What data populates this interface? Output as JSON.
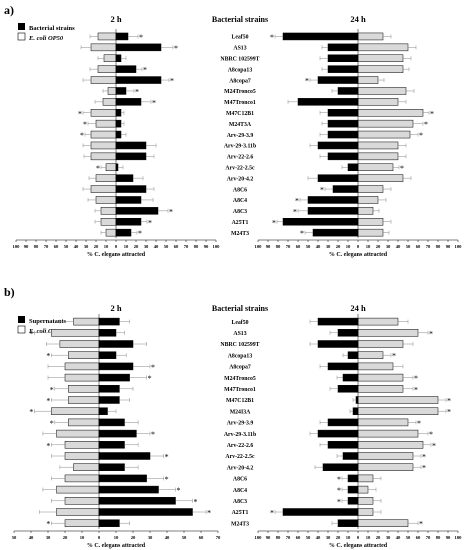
{
  "colors": {
    "bacteria": "#000000",
    "control": "#d9d9d9",
    "stroke": "#000000",
    "errorbar": "#888888"
  },
  "panels": [
    {
      "label": "a)",
      "legend_bacteria": "Bacterial strains",
      "legend_control": "E. coli OP50",
      "center_title": "Bacterial strains",
      "strains": [
        "Leaf50",
        "AS13",
        "NBRC 102599T",
        "A8copa13",
        "A8copa7",
        "M24Tronco5",
        "M47Tronco1",
        "M47C12B1",
        "M24T3A",
        "Arv-29-3.9",
        "Arv-29-3.11b",
        "Arv-22-2.6",
        "Arv-22-2.5c",
        "Arv-20-4.2",
        "A8C6",
        "A8C4",
        "A8C3",
        "A25T1",
        "M24T3"
      ]
    },
    {
      "label": "b)",
      "legend_bacteria": "Supernatants",
      "legend_control": "E. coli OP50",
      "center_title": "Bacterial strains",
      "strains": [
        "Leaf50",
        "AS13",
        "NBRC 102599T",
        "A8copa13",
        "A8copa7",
        "M24Tronco5",
        "M47Tronco1",
        "M47C12B1",
        "M24I3A",
        "Arv-29-3.9",
        "Arv-29-3.11b",
        "Arv-22-2.6",
        "Arv-22-2.5c",
        "Arv-20-4.2",
        "A8C6",
        "A8C4",
        "A8C3",
        "A25T1",
        "M24T3"
      ]
    }
  ],
  "chart_data": [
    {
      "type": "bar",
      "panel": "a",
      "title": "2 h",
      "xlabel": "% C. elegans attracted",
      "xlim": [
        -100,
        100
      ],
      "xticks": [
        "100",
        "90",
        "80",
        "70",
        "60",
        "50",
        "40",
        "30",
        "20",
        "10",
        "0",
        "10",
        "20",
        "30",
        "40",
        "50",
        "60",
        "70",
        "80",
        "90",
        "100"
      ],
      "categories": [
        "Leaf50",
        "AS13",
        "NBRC 102599T",
        "A8copa13",
        "A8copa7",
        "M24Tronco5",
        "M47Tronco1",
        "M47C12B1",
        "M24T3A",
        "Arv-29-3.9",
        "Arv-29-3.11b",
        "Arv-22-2.6",
        "Arv-22-2.5c",
        "Arv-20-4.2",
        "A8C6",
        "A8C4",
        "A8C3",
        "A25T1",
        "M24T3"
      ],
      "series": [
        {
          "name": "E. coli OP50",
          "values": [
            -18,
            -25,
            -12,
            -18,
            -25,
            -8,
            -13,
            -25,
            -20,
            -25,
            -25,
            -25,
            -10,
            -20,
            -25,
            -20,
            -15,
            -15,
            -10
          ],
          "err": [
            8,
            10,
            6,
            8,
            8,
            5,
            8,
            8,
            8,
            6,
            8,
            7,
            5,
            7,
            8,
            8,
            6,
            6,
            5
          ]
        },
        {
          "name": "Bacterial strains",
          "values": [
            12,
            45,
            5,
            20,
            45,
            10,
            25,
            5,
            5,
            5,
            30,
            30,
            2,
            17,
            30,
            25,
            42,
            25,
            15
          ],
          "err": [
            10,
            12,
            5,
            6,
            8,
            8,
            10,
            3,
            3,
            5,
            10,
            8,
            5,
            10,
            8,
            12,
            10,
            6,
            6
          ]
        }
      ],
      "stars": [
        [
          0,
          "right"
        ],
        [
          1,
          "right"
        ],
        [
          3,
          "right"
        ],
        [
          4,
          "right"
        ],
        [
          5,
          "right"
        ],
        [
          6,
          "right"
        ],
        [
          7,
          "left"
        ],
        [
          8,
          "left"
        ],
        [
          9,
          "left"
        ],
        [
          12,
          "left"
        ],
        [
          16,
          "right"
        ],
        [
          17,
          "right"
        ],
        [
          18,
          "right"
        ]
      ]
    },
    {
      "type": "bar",
      "panel": "a",
      "title": "24 h",
      "xlabel": "% C. elegans attracted",
      "xlim": [
        -100,
        100
      ],
      "xticks": [
        "100",
        "90",
        "80",
        "70",
        "60",
        "50",
        "40",
        "30",
        "20",
        "10",
        "0",
        "10",
        "20",
        "30",
        "40",
        "50",
        "60",
        "70",
        "80",
        "90",
        "100"
      ],
      "categories": [
        "Leaf50",
        "AS13",
        "NBRC 102599T",
        "A8copa13",
        "A8copa7",
        "M24Tronco5",
        "M47Tronco1",
        "M47C12B1",
        "M24T3A",
        "Arv-29-3.9",
        "Arv-29-3.11b",
        "Arv-22-2.6",
        "Arv-22-2.5c",
        "Arv-20-4.2",
        "A8C6",
        "A8C4",
        "A8C3",
        "A25T1",
        "M24T3"
      ],
      "series": [
        {
          "name": "E. coli OP50",
          "values": [
            25,
            50,
            45,
            45,
            20,
            48,
            40,
            65,
            55,
            52,
            40,
            40,
            35,
            45,
            25,
            20,
            15,
            25,
            25
          ],
          "err": [
            8,
            8,
            8,
            6,
            6,
            8,
            8,
            6,
            10,
            8,
            8,
            8,
            6,
            8,
            8,
            8,
            6,
            8,
            6
          ]
        },
        {
          "name": "Bacterial strains",
          "values": [
            -75,
            -30,
            -30,
            -30,
            -40,
            -20,
            -60,
            -30,
            -30,
            -30,
            -40,
            -30,
            -10,
            -40,
            -25,
            -50,
            -50,
            -75,
            -45
          ],
          "err": [
            8,
            6,
            8,
            6,
            8,
            6,
            10,
            8,
            6,
            8,
            8,
            8,
            6,
            10,
            8,
            8,
            10,
            6,
            8
          ]
        }
      ],
      "stars": [
        [
          0,
          "left"
        ],
        [
          4,
          "left"
        ],
        [
          7,
          "right"
        ],
        [
          8,
          "right"
        ],
        [
          9,
          "right"
        ],
        [
          12,
          "right"
        ],
        [
          14,
          "left"
        ],
        [
          15,
          "left"
        ],
        [
          16,
          "left"
        ],
        [
          17,
          "left"
        ],
        [
          18,
          "left"
        ]
      ]
    },
    {
      "type": "bar",
      "panel": "b",
      "title": "2 h",
      "xlabel": "% C. elegans attracted",
      "xlim": [
        -50,
        70
      ],
      "xticks": [
        "50",
        "40",
        "30",
        "20",
        "10",
        "0",
        "10",
        "20",
        "30",
        "40",
        "50",
        "60",
        "70"
      ],
      "categories": [
        "Leaf50",
        "AS13",
        "NBRC 102599T",
        "A8copa13",
        "A8copa7",
        "M24Tronco5",
        "M47Tronco1",
        "M47C12B1",
        "M24I3A",
        "Arv-29-3.9",
        "Arv-29-3.11b",
        "Arv-22-2.6",
        "Arv-22-2.5c",
        "Arv-20-4.2",
        "A8C6",
        "A8C4",
        "A8C3",
        "A25T1",
        "M24T3"
      ],
      "series": [
        {
          "name": "E. coli OP50",
          "values": [
            -15,
            -28,
            -23,
            -18,
            -20,
            -20,
            -18,
            -18,
            -28,
            -18,
            -25,
            -20,
            -20,
            -15,
            -20,
            -25,
            -20,
            -25,
            -20
          ],
          "err": [
            8,
            10,
            8,
            10,
            10,
            10,
            8,
            10,
            10,
            8,
            8,
            8,
            8,
            8,
            8,
            8,
            8,
            10,
            8
          ]
        },
        {
          "name": "Supernatants",
          "values": [
            12,
            10,
            20,
            10,
            20,
            18,
            12,
            12,
            5,
            15,
            22,
            15,
            30,
            15,
            28,
            35,
            45,
            55,
            12
          ],
          "err": [
            6,
            5,
            8,
            6,
            10,
            10,
            8,
            6,
            5,
            8,
            8,
            8,
            8,
            8,
            10,
            10,
            10,
            8,
            6
          ]
        }
      ],
      "stars": [
        [
          1,
          "left"
        ],
        [
          3,
          "left"
        ],
        [
          4,
          "right"
        ],
        [
          5,
          "right"
        ],
        [
          6,
          "left"
        ],
        [
          7,
          "left"
        ],
        [
          8,
          "left"
        ],
        [
          9,
          "left"
        ],
        [
          10,
          "right"
        ],
        [
          11,
          "left"
        ],
        [
          12,
          "right"
        ],
        [
          14,
          "right"
        ],
        [
          15,
          "right"
        ],
        [
          16,
          "right"
        ],
        [
          17,
          "right"
        ],
        [
          18,
          "left"
        ]
      ]
    },
    {
      "type": "bar",
      "panel": "b",
      "title": "24 h",
      "xlabel": "% C. elegans attracted",
      "xlim": [
        -100,
        100
      ],
      "xticks": [
        "100",
        "90",
        "80",
        "70",
        "60",
        "50",
        "40",
        "30",
        "20",
        "10",
        "0",
        "10",
        "20",
        "30",
        "40",
        "50",
        "60",
        "70",
        "80",
        "90",
        "100"
      ],
      "categories": [
        "Leaf50",
        "AS13",
        "NBRC 102599T",
        "A8copa13",
        "A8copa7",
        "M24Tronco5",
        "M47Tronco1",
        "M47C12B1",
        "M24I3A",
        "Arv-29-3.9",
        "Arv-29-3.11b",
        "Arv-22-2.6",
        "Arv-22-2.5c",
        "Arv-20-4.2",
        "A8C6",
        "A8C4",
        "A8C3",
        "A25T1",
        "M24T3"
      ],
      "series": [
        {
          "name": "E. coli OP50",
          "values": [
            40,
            60,
            45,
            25,
            35,
            45,
            45,
            80,
            80,
            50,
            60,
            65,
            55,
            55,
            15,
            10,
            15,
            15,
            50
          ],
          "err": [
            10,
            10,
            10,
            8,
            10,
            10,
            10,
            8,
            8,
            8,
            10,
            8,
            8,
            8,
            8,
            8,
            8,
            8,
            10
          ]
        },
        {
          "name": "Supernatants",
          "values": [
            -40,
            -20,
            -40,
            -10,
            -30,
            -15,
            -20,
            -2,
            -5,
            -30,
            -40,
            -30,
            -15,
            -35,
            -10,
            -10,
            -10,
            -75,
            -20
          ],
          "err": [
            8,
            8,
            8,
            5,
            8,
            6,
            8,
            3,
            3,
            8,
            8,
            8,
            6,
            8,
            6,
            6,
            6,
            8,
            6
          ]
        }
      ],
      "stars": [
        [
          1,
          "right"
        ],
        [
          3,
          "right"
        ],
        [
          5,
          "right"
        ],
        [
          6,
          "right"
        ],
        [
          7,
          "right"
        ],
        [
          8,
          "right"
        ],
        [
          9,
          "right"
        ],
        [
          10,
          "right"
        ],
        [
          11,
          "right"
        ],
        [
          12,
          "right"
        ],
        [
          13,
          "right"
        ],
        [
          14,
          "left"
        ],
        [
          15,
          "left"
        ],
        [
          16,
          "left"
        ],
        [
          17,
          "left"
        ],
        [
          18,
          "right"
        ]
      ]
    }
  ]
}
